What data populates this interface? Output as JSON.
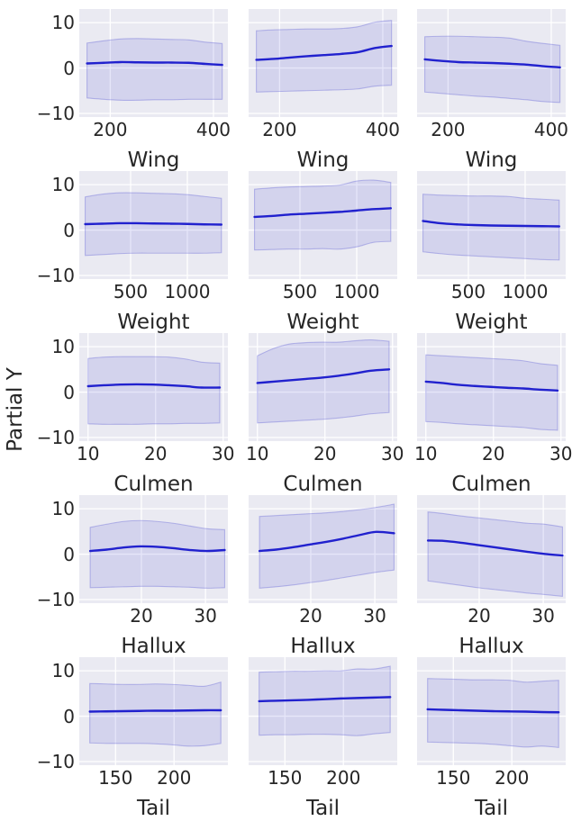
{
  "chart_data": {
    "type": "line",
    "description": "5x3 grid of partial dependence plots: mean line with confidence band",
    "ylabel": "Partial Y",
    "yticks": [
      10,
      0,
      -10
    ],
    "ytick_labels": [
      "10",
      "0",
      "−10"
    ],
    "ylim": [
      -10.8,
      13.0
    ],
    "grid": "on",
    "colors": {
      "line": "#2121ce",
      "band": "#3333cc",
      "band_fill_opacity": 0.12,
      "band_edge_opacity": 0.28,
      "plot_bg": "#eaeaf2",
      "gridline": "#ffffff",
      "text": "#262626",
      "figure_bg": "#ffffff"
    },
    "rows": [
      {
        "xlabel": "Wing",
        "xlim": [
          140,
          428
        ],
        "xticks": [
          200,
          400
        ],
        "x": [
          155,
          188,
          220,
          253,
          286,
          319,
          352,
          385,
          417
        ],
        "cols": [
          {
            "y": [
              1.0,
              1.15,
              1.3,
              1.25,
              1.2,
              1.2,
              1.15,
              0.9,
              0.7
            ],
            "hi": [
              5.5,
              6.0,
              6.4,
              6.5,
              6.4,
              6.3,
              6.2,
              5.7,
              5.4
            ],
            "lo": [
              -6.6,
              -6.9,
              -7.1,
              -7.1,
              -7.0,
              -7.0,
              -6.9,
              -6.9,
              -6.9
            ]
          },
          {
            "y": [
              1.8,
              2.0,
              2.3,
              2.6,
              2.85,
              3.1,
              3.5,
              4.4,
              4.85
            ],
            "hi": [
              8.2,
              8.4,
              8.5,
              8.6,
              8.6,
              8.7,
              9.1,
              10.1,
              10.5
            ],
            "lo": [
              -5.3,
              -5.2,
              -5.1,
              -5.0,
              -4.9,
              -4.8,
              -4.6,
              -4.0,
              -3.8
            ]
          },
          {
            "y": [
              1.9,
              1.55,
              1.3,
              1.2,
              1.1,
              0.95,
              0.75,
              0.4,
              0.15
            ],
            "hi": [
              6.9,
              7.0,
              7.0,
              6.9,
              6.8,
              6.6,
              5.9,
              5.4,
              5.0
            ],
            "lo": [
              -5.3,
              -5.6,
              -5.9,
              -6.2,
              -6.4,
              -6.7,
              -7.0,
              -7.4,
              -7.6
            ]
          }
        ]
      },
      {
        "xlabel": "Weight",
        "xlim": [
          48,
          1357
        ],
        "xticks": [
          500,
          1000
        ],
        "x": [
          100,
          250,
          400,
          550,
          700,
          850,
          1000,
          1150,
          1300
        ],
        "cols": [
          {
            "y": [
              1.3,
              1.4,
              1.5,
              1.5,
              1.45,
              1.4,
              1.35,
              1.25,
              1.2
            ],
            "hi": [
              7.3,
              7.9,
              8.2,
              8.2,
              8.1,
              8.0,
              7.8,
              7.4,
              7.0
            ],
            "lo": [
              -5.6,
              -5.4,
              -5.2,
              -5.1,
              -5.1,
              -5.1,
              -5.1,
              -5.1,
              -5.0
            ]
          },
          {
            "y": [
              2.9,
              3.1,
              3.4,
              3.6,
              3.8,
              4.0,
              4.3,
              4.6,
              4.8
            ],
            "hi": [
              9.0,
              9.3,
              9.5,
              9.6,
              9.7,
              9.9,
              10.8,
              11.0,
              10.5
            ],
            "lo": [
              -4.4,
              -4.3,
              -4.2,
              -4.2,
              -4.1,
              -4.2,
              -3.7,
              -2.7,
              -2.5
            ]
          },
          {
            "y": [
              2.0,
              1.5,
              1.25,
              1.1,
              1.0,
              0.95,
              0.9,
              0.85,
              0.8
            ],
            "hi": [
              7.9,
              7.7,
              7.6,
              7.5,
              7.5,
              7.4,
              7.0,
              6.8,
              6.6
            ],
            "lo": [
              -4.8,
              -5.2,
              -5.5,
              -5.7,
              -5.9,
              -6.1,
              -6.3,
              -6.5,
              -6.6
            ]
          }
        ]
      },
      {
        "xlabel": "Culmen",
        "xlim": [
          8.7,
          30.7
        ],
        "xticks": [
          10,
          20,
          30
        ],
        "x": [
          10,
          12.4,
          14.8,
          17.2,
          19.6,
          22,
          24.4,
          26.8,
          29.5
        ],
        "cols": [
          {
            "y": [
              1.3,
              1.5,
              1.65,
              1.7,
              1.65,
              1.5,
              1.3,
              1.0,
              1.0
            ],
            "hi": [
              7.4,
              7.7,
              7.8,
              7.8,
              7.8,
              7.7,
              7.3,
              6.6,
              6.4
            ],
            "lo": [
              -7.0,
              -7.1,
              -7.1,
              -7.1,
              -7.0,
              -7.0,
              -6.9,
              -6.9,
              -6.8
            ]
          },
          {
            "y": [
              2.0,
              2.3,
              2.6,
              2.9,
              3.2,
              3.6,
              4.1,
              4.7,
              5.0
            ],
            "hi": [
              8.0,
              9.6,
              10.6,
              10.9,
              11.0,
              11.0,
              11.3,
              11.5,
              11.2
            ],
            "lo": [
              -6.8,
              -6.6,
              -6.4,
              -6.2,
              -6.0,
              -5.7,
              -5.3,
              -4.8,
              -4.5
            ]
          },
          {
            "y": [
              2.3,
              2.0,
              1.6,
              1.35,
              1.15,
              0.95,
              0.8,
              0.55,
              0.35
            ],
            "hi": [
              8.2,
              8.0,
              7.8,
              7.6,
              7.4,
              7.2,
              6.9,
              6.3,
              5.9
            ],
            "lo": [
              -6.5,
              -6.7,
              -7.0,
              -7.2,
              -7.4,
              -7.6,
              -7.8,
              -8.2,
              -8.4
            ]
          }
        ]
      },
      {
        "xlabel": "Hallux",
        "xlim": [
          10.3,
          33.5
        ],
        "xticks": [
          20,
          30
        ],
        "x": [
          12,
          14.6,
          17.2,
          19.8,
          22.4,
          25,
          27.6,
          30.2,
          33
        ],
        "cols": [
          {
            "y": [
              0.7,
              1.0,
              1.45,
              1.7,
              1.6,
              1.3,
              0.9,
              0.7,
              0.9
            ],
            "hi": [
              5.9,
              6.6,
              7.2,
              7.4,
              7.2,
              6.8,
              6.2,
              5.6,
              5.4
            ],
            "lo": [
              -7.4,
              -7.3,
              -7.2,
              -7.1,
              -7.1,
              -7.2,
              -7.3,
              -7.5,
              -7.4
            ]
          },
          {
            "y": [
              0.7,
              1.0,
              1.5,
              2.1,
              2.7,
              3.4,
              4.2,
              4.9,
              4.6
            ],
            "hi": [
              8.3,
              8.5,
              8.7,
              8.9,
              9.1,
              9.4,
              9.8,
              10.3,
              11.0
            ],
            "lo": [
              -7.5,
              -7.2,
              -6.8,
              -6.3,
              -5.8,
              -5.2,
              -4.6,
              -4.0,
              -3.5
            ]
          },
          {
            "y": [
              3.0,
              2.9,
              2.5,
              2.0,
              1.5,
              1.0,
              0.5,
              0.05,
              -0.3
            ],
            "hi": [
              9.3,
              8.9,
              8.4,
              8.0,
              7.6,
              7.2,
              6.8,
              6.6,
              6.0
            ],
            "lo": [
              -5.9,
              -6.4,
              -6.9,
              -7.4,
              -7.8,
              -8.2,
              -8.6,
              -8.9,
              -9.3
            ]
          }
        ]
      },
      {
        "xlabel": "Tail",
        "xlim": [
          119,
          246
        ],
        "xticks": [
          150,
          200
        ],
        "x": [
          128,
          142,
          156,
          170,
          184,
          198,
          212,
          226,
          240
        ],
        "cols": [
          {
            "y": [
              1.0,
              1.05,
              1.1,
              1.15,
              1.2,
              1.2,
              1.25,
              1.3,
              1.3
            ],
            "hi": [
              7.2,
              7.1,
              7.0,
              7.0,
              7.1,
              7.0,
              6.8,
              6.6,
              7.5
            ],
            "lo": [
              -5.9,
              -6.0,
              -6.0,
              -6.0,
              -6.1,
              -6.3,
              -6.6,
              -6.5,
              -6.0
            ]
          },
          {
            "y": [
              3.3,
              3.4,
              3.5,
              3.6,
              3.75,
              3.9,
              4.0,
              4.1,
              4.2
            ],
            "hi": [
              9.7,
              9.8,
              9.9,
              9.9,
              10.0,
              10.0,
              10.4,
              10.4,
              11.0
            ],
            "lo": [
              -4.2,
              -4.1,
              -4.1,
              -4.0,
              -4.0,
              -4.1,
              -4.3,
              -3.9,
              -3.6
            ]
          },
          {
            "y": [
              1.5,
              1.4,
              1.3,
              1.2,
              1.1,
              1.05,
              1.0,
              0.9,
              0.85
            ],
            "hi": [
              8.3,
              8.2,
              8.1,
              8.0,
              8.0,
              7.9,
              7.5,
              7.7,
              7.9
            ],
            "lo": [
              -5.7,
              -5.8,
              -5.9,
              -6.0,
              -6.2,
              -6.5,
              -6.8,
              -6.6,
              -6.9
            ]
          }
        ]
      }
    ]
  }
}
